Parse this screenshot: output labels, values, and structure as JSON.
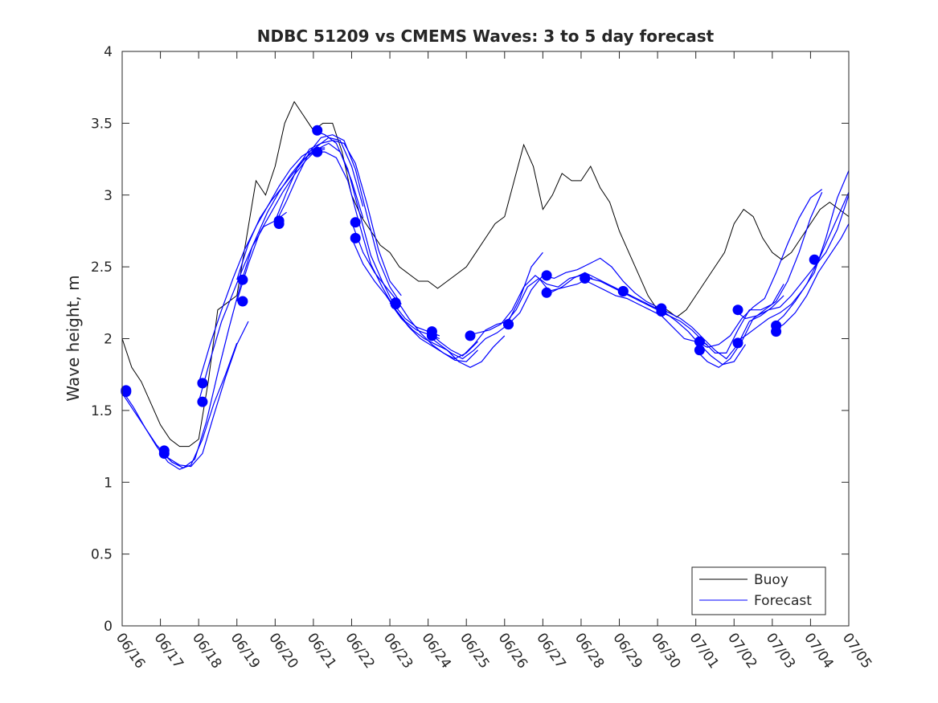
{
  "chart_data": {
    "type": "line",
    "title": "NDBC 51209 vs CMEMS Waves: 3 to 5 day forecast",
    "xlabel": "",
    "ylabel": "Wave height, m",
    "xlim": [
      0,
      19
    ],
    "ylim": [
      0,
      4
    ],
    "x_ticks": [
      0,
      1,
      2,
      3,
      4,
      5,
      6,
      7,
      8,
      9,
      10,
      11,
      12,
      13,
      14,
      15,
      16,
      17,
      18,
      19
    ],
    "x_tick_labels": [
      "06/16",
      "06/17",
      "06/18",
      "06/19",
      "06/20",
      "06/21",
      "06/22",
      "06/23",
      "06/24",
      "06/25",
      "06/26",
      "06/27",
      "06/28",
      "06/29",
      "06/30",
      "07/01",
      "07/02",
      "07/03",
      "07/04",
      "07/05"
    ],
    "y_ticks": [
      0,
      0.5,
      1,
      1.5,
      2,
      2.5,
      3,
      3.5,
      4
    ],
    "y_tick_labels": [
      "0",
      "0.5",
      "1",
      "1.5",
      "2",
      "2.5",
      "3",
      "3.5",
      "4"
    ],
    "grid": false,
    "legend_position": "bottom-right",
    "legend": [
      {
        "label": "Buoy",
        "color": "#000000"
      },
      {
        "label": "Forecast",
        "color": "#0000ff"
      }
    ],
    "buoy": {
      "name": "Buoy",
      "color": "#000000",
      "x": [
        0.0,
        0.25,
        0.5,
        0.75,
        1.0,
        1.25,
        1.5,
        1.75,
        2.0,
        2.25,
        2.5,
        2.75,
        3.0,
        3.25,
        3.5,
        3.75,
        4.0,
        4.25,
        4.5,
        4.75,
        5.0,
        5.25,
        5.5,
        5.75,
        6.0,
        6.25,
        6.5,
        6.75,
        7.0,
        7.25,
        7.5,
        7.75,
        8.0,
        8.25,
        8.5,
        8.75,
        9.0,
        9.25,
        9.5,
        9.75,
        10.0,
        10.25,
        10.5,
        10.75,
        11.0,
        11.25,
        11.5,
        11.75,
        12.0,
        12.25,
        12.5,
        12.75,
        13.0,
        13.25,
        13.5,
        13.75,
        14.0,
        14.25,
        14.5,
        14.75,
        15.0,
        15.25,
        15.5,
        15.75,
        16.0,
        16.25,
        16.5,
        16.75,
        17.0,
        17.25,
        17.5,
        17.75,
        18.0,
        18.25,
        18.5,
        18.75,
        19.0
      ],
      "y": [
        2.0,
        1.8,
        1.7,
        1.55,
        1.4,
        1.3,
        1.25,
        1.25,
        1.3,
        1.7,
        2.2,
        2.25,
        2.3,
        2.7,
        3.1,
        3.0,
        3.2,
        3.5,
        3.65,
        3.55,
        3.45,
        3.5,
        3.5,
        3.3,
        3.0,
        2.85,
        2.75,
        2.65,
        2.6,
        2.5,
        2.45,
        2.4,
        2.4,
        2.35,
        2.4,
        2.45,
        2.5,
        2.6,
        2.7,
        2.8,
        2.85,
        3.1,
        3.35,
        3.2,
        2.9,
        3.0,
        3.15,
        3.1,
        3.1,
        3.2,
        3.05,
        2.95,
        2.75,
        2.6,
        2.45,
        2.3,
        2.2,
        2.2,
        2.15,
        2.2,
        2.3,
        2.4,
        2.5,
        2.6,
        2.8,
        2.9,
        2.85,
        2.7,
        2.6,
        2.55,
        2.6,
        2.7,
        2.8,
        2.9,
        2.95,
        2.9,
        2.85
      ]
    },
    "forecast_series": [
      {
        "name": "Forecast",
        "color": "#0000ff",
        "x": [
          0.0,
          0.3,
          0.6,
          0.9,
          1.2,
          1.5,
          1.8,
          2.1,
          2.4,
          2.7,
          3.0,
          3.3
        ],
        "y": [
          1.64,
          1.52,
          1.38,
          1.26,
          1.17,
          1.12,
          1.11,
          1.2,
          1.47,
          1.73,
          1.96,
          2.12
        ]
      },
      {
        "name": "Forecast",
        "color": "#0000ff",
        "x": [
          1.0,
          1.3,
          1.6,
          1.9,
          2.2,
          2.5,
          2.8,
          3.1,
          3.4,
          3.7,
          4.0,
          4.3
        ],
        "y": [
          1.22,
          1.14,
          1.1,
          1.16,
          1.42,
          1.76,
          2.08,
          2.38,
          2.64,
          2.78,
          2.82,
          2.88
        ]
      },
      {
        "name": "Forecast",
        "color": "#0000ff",
        "x": [
          0.0,
          0.3,
          0.6,
          0.9,
          1.2,
          1.5,
          1.8,
          2.1,
          2.4,
          2.7,
          3.0
        ],
        "y": [
          1.62,
          1.5,
          1.38,
          1.25,
          1.14,
          1.09,
          1.12,
          1.3,
          1.55,
          1.75,
          1.97
        ]
      },
      {
        "name": "Forecast",
        "color": "#0000ff",
        "x": [
          2.0,
          2.3,
          2.6,
          2.9,
          3.2,
          3.5,
          3.8,
          4.1,
          4.4,
          4.7,
          5.0,
          5.3
        ],
        "y": [
          1.56,
          1.85,
          2.12,
          2.32,
          2.52,
          2.7,
          2.88,
          3.02,
          3.14,
          3.24,
          3.3,
          3.32
        ]
      },
      {
        "name": "Forecast",
        "color": "#0000ff",
        "x": [
          2.0,
          2.3,
          2.6,
          2.9,
          3.2,
          3.5,
          3.8,
          4.1,
          4.4,
          4.7,
          5.0,
          5.3
        ],
        "y": [
          1.69,
          1.96,
          2.2,
          2.42,
          2.62,
          2.78,
          2.92,
          3.06,
          3.18,
          3.27,
          3.32,
          3.33
        ]
      },
      {
        "name": "Forecast",
        "color": "#0000ff",
        "x": [
          3.0,
          3.3,
          3.6,
          3.9,
          4.2,
          4.5,
          4.8,
          5.1,
          5.4,
          5.7,
          6.0,
          6.3
        ],
        "y": [
          2.26,
          2.52,
          2.74,
          2.88,
          3.02,
          3.14,
          3.24,
          3.32,
          3.36,
          3.3,
          3.1,
          2.84
        ]
      },
      {
        "name": "Forecast",
        "color": "#0000ff",
        "x": [
          3.0,
          3.3,
          3.6,
          3.9,
          4.2,
          4.5,
          4.8,
          5.1,
          5.4,
          5.7,
          6.0,
          6.3
        ],
        "y": [
          2.41,
          2.66,
          2.84,
          2.96,
          3.06,
          3.16,
          3.26,
          3.34,
          3.4,
          3.38,
          3.2,
          2.92
        ]
      },
      {
        "name": "Forecast",
        "color": "#0000ff",
        "x": [
          4.0,
          4.3,
          4.6,
          4.9,
          5.2,
          5.5,
          5.8,
          6.1,
          6.4,
          6.7,
          7.0,
          7.3
        ],
        "y": [
          2.8,
          2.96,
          3.14,
          3.3,
          3.4,
          3.42,
          3.38,
          3.18,
          2.86,
          2.55,
          2.36,
          2.24
        ]
      },
      {
        "name": "Forecast",
        "color": "#0000ff",
        "x": [
          4.0,
          4.3,
          4.6,
          4.9,
          5.2,
          5.5,
          5.8,
          6.1,
          6.4,
          6.7,
          7.0,
          7.3
        ],
        "y": [
          2.82,
          3.02,
          3.2,
          3.32,
          3.36,
          3.38,
          3.36,
          3.22,
          2.94,
          2.62,
          2.4,
          2.3
        ]
      },
      {
        "name": "Forecast",
        "color": "#0000ff",
        "x": [
          5.0,
          5.3,
          5.6,
          5.9,
          6.2,
          6.5,
          6.8,
          7.1,
          7.4,
          7.7,
          8.0,
          8.3
        ],
        "y": [
          3.3,
          3.3,
          3.26,
          3.1,
          2.8,
          2.52,
          2.36,
          2.22,
          2.12,
          2.06,
          2.03,
          2.0
        ]
      },
      {
        "name": "Forecast",
        "color": "#0000ff",
        "x": [
          5.0,
          5.3,
          5.6,
          5.9,
          6.2,
          6.5,
          6.8,
          7.1,
          7.4,
          7.7,
          8.0,
          8.3
        ],
        "y": [
          3.45,
          3.42,
          3.36,
          3.18,
          2.88,
          2.58,
          2.4,
          2.24,
          2.14,
          2.08,
          2.05,
          2.02
        ]
      },
      {
        "name": "Forecast",
        "color": "#0000ff",
        "x": [
          6.0,
          6.3,
          6.6,
          6.9,
          7.2,
          7.5,
          7.8,
          8.1,
          8.4,
          8.7,
          9.0,
          9.3
        ],
        "y": [
          2.7,
          2.52,
          2.4,
          2.3,
          2.18,
          2.08,
          2.0,
          1.95,
          1.9,
          1.86,
          1.9,
          1.98
        ]
      },
      {
        "name": "Forecast",
        "color": "#0000ff",
        "x": [
          6.0,
          6.3,
          6.6,
          6.9,
          7.2,
          7.5,
          7.8,
          8.1,
          8.4,
          8.7,
          9.0,
          9.3
        ],
        "y": [
          2.81,
          2.6,
          2.46,
          2.36,
          2.26,
          2.14,
          2.04,
          1.96,
          1.9,
          1.85,
          1.84,
          1.92
        ]
      },
      {
        "name": "Forecast",
        "color": "#0000ff",
        "x": [
          7.0,
          7.3,
          7.6,
          7.9,
          8.2,
          8.5,
          8.8,
          9.1,
          9.4,
          9.7,
          10.0
        ],
        "y": [
          2.25,
          2.14,
          2.06,
          2.0,
          1.96,
          1.92,
          1.84,
          1.8,
          1.84,
          1.94,
          2.02
        ]
      },
      {
        "name": "Forecast",
        "color": "#0000ff",
        "x": [
          8.0,
          8.3,
          8.6,
          8.9,
          9.2,
          9.5,
          9.8,
          10.1,
          10.4,
          10.7,
          11.0
        ],
        "y": [
          2.02,
          1.96,
          1.9,
          1.86,
          1.92,
          2.0,
          2.04,
          2.1,
          2.18,
          2.34,
          2.44
        ]
      },
      {
        "name": "Forecast",
        "color": "#0000ff",
        "x": [
          8.0,
          8.3,
          8.6,
          8.9,
          9.2,
          9.5,
          9.8,
          10.1,
          10.4,
          10.7,
          11.0
        ],
        "y": [
          2.05,
          1.98,
          1.92,
          1.88,
          1.96,
          2.06,
          2.1,
          2.12,
          2.28,
          2.5,
          2.6
        ]
      },
      {
        "name": "Forecast",
        "color": "#0000ff",
        "x": [
          9.0,
          9.3,
          9.6,
          9.9,
          10.2,
          10.5,
          10.8,
          11.1,
          11.4,
          11.7,
          12.0,
          12.3
        ],
        "y": [
          2.02,
          2.04,
          2.06,
          2.1,
          2.2,
          2.36,
          2.44,
          2.38,
          2.36,
          2.42,
          2.44,
          2.42
        ]
      },
      {
        "name": "Forecast",
        "color": "#0000ff",
        "x": [
          10.0,
          10.3,
          10.6,
          10.9,
          11.2,
          11.5,
          11.8,
          12.1,
          12.4,
          12.7,
          13.0,
          13.3
        ],
        "y": [
          2.1,
          2.2,
          2.36,
          2.42,
          2.32,
          2.36,
          2.42,
          2.46,
          2.42,
          2.38,
          2.34,
          2.3
        ]
      },
      {
        "name": "Forecast",
        "color": "#0000ff",
        "x": [
          11.0,
          11.3,
          11.6,
          11.9,
          12.2,
          12.5,
          12.8,
          13.1,
          13.4,
          13.7,
          14.0,
          14.3
        ],
        "y": [
          2.44,
          2.42,
          2.46,
          2.48,
          2.52,
          2.56,
          2.5,
          2.4,
          2.32,
          2.26,
          2.22,
          2.18
        ]
      },
      {
        "name": "Forecast",
        "color": "#0000ff",
        "x": [
          11.0,
          11.3,
          11.6,
          11.9,
          12.2,
          12.5,
          12.8,
          13.1,
          13.4,
          13.7,
          14.0,
          14.3
        ],
        "y": [
          2.32,
          2.34,
          2.36,
          2.38,
          2.42,
          2.4,
          2.36,
          2.32,
          2.28,
          2.24,
          2.2,
          2.16
        ]
      },
      {
        "name": "Forecast",
        "color": "#0000ff",
        "x": [
          12.0,
          12.3,
          12.6,
          12.9,
          13.2,
          13.5,
          13.8,
          14.1,
          14.4,
          14.7,
          15.0,
          15.3
        ],
        "y": [
          2.42,
          2.38,
          2.34,
          2.3,
          2.28,
          2.24,
          2.2,
          2.16,
          2.08,
          2.0,
          1.98,
          1.96
        ]
      },
      {
        "name": "Forecast",
        "color": "#0000ff",
        "x": [
          13.0,
          13.3,
          13.6,
          13.9,
          14.2,
          14.5,
          14.8,
          15.1,
          15.4,
          15.7,
          16.0,
          16.3
        ],
        "y": [
          2.33,
          2.3,
          2.26,
          2.22,
          2.18,
          2.12,
          2.05,
          1.96,
          1.88,
          1.82,
          1.84,
          1.96
        ]
      },
      {
        "name": "Forecast",
        "color": "#0000ff",
        "x": [
          14.0,
          14.3,
          14.6,
          14.9,
          15.2,
          15.5,
          15.8,
          16.1,
          16.4,
          16.7,
          17.0,
          17.3
        ],
        "y": [
          2.21,
          2.18,
          2.14,
          2.08,
          2.0,
          1.92,
          1.86,
          1.96,
          2.12,
          2.16,
          2.22,
          2.3
        ]
      },
      {
        "name": "Forecast",
        "color": "#0000ff",
        "x": [
          14.0,
          14.3,
          14.6,
          14.9,
          15.2,
          15.5,
          15.8,
          16.1,
          16.4,
          16.7,
          17.0,
          17.3
        ],
        "y": [
          2.19,
          2.16,
          2.12,
          2.06,
          1.98,
          1.9,
          1.9,
          2.06,
          2.2,
          2.2,
          2.24,
          2.38
        ]
      },
      {
        "name": "Forecast",
        "color": "#0000ff",
        "x": [
          15.0,
          15.3,
          15.6,
          15.9,
          16.2,
          16.5,
          16.8,
          17.1,
          17.4,
          17.7,
          18.0,
          18.3
        ],
        "y": [
          1.92,
          1.84,
          1.8,
          1.86,
          1.98,
          2.14,
          2.2,
          2.26,
          2.4,
          2.6,
          2.84,
          3.02
        ]
      },
      {
        "name": "Forecast",
        "color": "#0000ff",
        "x": [
          15.0,
          15.3,
          15.6,
          15.9,
          16.2,
          16.5,
          16.8,
          17.1,
          17.4,
          17.7,
          18.0,
          18.3
        ],
        "y": [
          1.98,
          1.94,
          1.96,
          2.02,
          2.14,
          2.22,
          2.28,
          2.46,
          2.66,
          2.84,
          2.98,
          3.04
        ]
      },
      {
        "name": "Forecast",
        "color": "#0000ff",
        "x": [
          16.0,
          16.3,
          16.6,
          16.9,
          17.2,
          17.5,
          17.8,
          18.1,
          18.4,
          18.7,
          19.0
        ],
        "y": [
          2.2,
          2.14,
          2.16,
          2.2,
          2.22,
          2.3,
          2.4,
          2.5,
          2.6,
          2.76,
          3.0
        ]
      },
      {
        "name": "Forecast",
        "color": "#0000ff",
        "x": [
          16.0,
          16.3,
          16.6,
          16.9,
          17.2,
          17.5,
          17.8,
          18.1,
          18.4,
          18.7,
          19.0
        ],
        "y": [
          1.97,
          2.02,
          2.08,
          2.14,
          2.18,
          2.24,
          2.34,
          2.46,
          2.7,
          2.98,
          3.17
        ]
      },
      {
        "name": "Forecast",
        "color": "#0000ff",
        "x": [
          17.0,
          17.3,
          17.6,
          17.9,
          18.2,
          18.5,
          18.8,
          19.0
        ],
        "y": [
          2.05,
          2.1,
          2.18,
          2.3,
          2.46,
          2.58,
          2.7,
          2.8
        ]
      },
      {
        "name": "Forecast",
        "color": "#0000ff",
        "x": [
          17.0,
          17.3,
          17.6,
          17.9,
          18.2,
          18.5,
          18.8,
          19.0
        ],
        "y": [
          2.09,
          2.16,
          2.26,
          2.38,
          2.54,
          2.72,
          2.9,
          3.02
        ]
      }
    ],
    "forecast_markers": {
      "color": "#0000ff",
      "x": [
        0.1,
        0.1,
        1.1,
        1.1,
        2.1,
        2.1,
        3.15,
        3.15,
        4.1,
        4.1,
        5.1,
        5.1,
        6.1,
        6.1,
        7.15,
        7.15,
        8.1,
        8.1,
        9.1,
        10.1,
        10.1,
        11.1,
        11.1,
        12.1,
        12.1,
        13.1,
        13.1,
        14.1,
        14.1,
        15.1,
        15.1,
        16.1,
        16.1,
        17.1,
        17.1,
        18.1
      ],
      "y": [
        1.63,
        1.64,
        1.2,
        1.22,
        1.56,
        1.69,
        2.26,
        2.41,
        2.8,
        2.82,
        3.3,
        3.45,
        2.7,
        2.81,
        2.24,
        2.25,
        2.02,
        2.05,
        2.02,
        2.1,
        2.1,
        2.32,
        2.44,
        2.42,
        2.42,
        2.33,
        2.33,
        2.19,
        2.21,
        1.92,
        1.98,
        1.97,
        2.2,
        2.05,
        2.09,
        2.55
      ]
    }
  }
}
